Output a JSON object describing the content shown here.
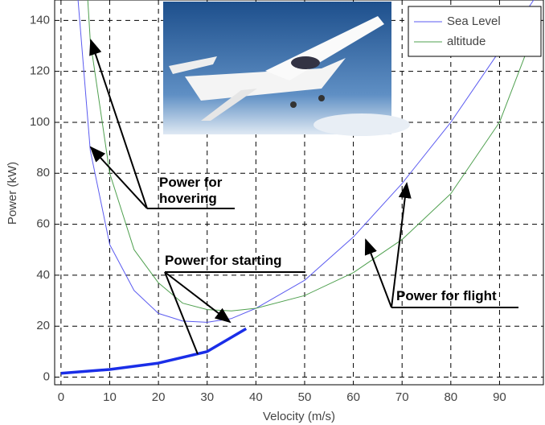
{
  "chart_data": {
    "type": "line",
    "xlabel": "Velocity (m/s)",
    "ylabel": "Power (kW)",
    "xlim": [
      -1.3,
      99
    ],
    "ylim": [
      -3,
      148
    ],
    "xticks": [
      0,
      10,
      20,
      30,
      40,
      50,
      60,
      70,
      80,
      90
    ],
    "yticks": [
      0,
      20,
      40,
      60,
      80,
      100,
      120,
      140
    ],
    "grid": true,
    "legend": "upper right",
    "series": [
      {
        "name": "Sea Level",
        "color": "#5b5bf0",
        "width": 1,
        "x": [
          3.5,
          6,
          10,
          15,
          20,
          25,
          30,
          35,
          40,
          50,
          60,
          70,
          80,
          90,
          97
        ],
        "values": [
          148,
          89,
          52,
          34,
          25,
          22,
          21.5,
          23,
          27,
          38,
          55,
          76,
          100,
          128,
          148
        ]
      },
      {
        "name": "altitude",
        "color": "#4fa04f",
        "width": 1,
        "x": [
          5.5,
          6,
          10,
          15,
          20,
          25,
          30,
          35,
          40,
          50,
          60,
          70,
          80,
          90,
          97
        ],
        "values": [
          148,
          132,
          80,
          50,
          37,
          29,
          26.5,
          26,
          27,
          32,
          41,
          54,
          72,
          100,
          135
        ]
      },
      {
        "color": "#1a2ee8",
        "width": 3.5,
        "x": [
          0,
          10,
          20,
          30,
          38
        ],
        "values": [
          1.5,
          3,
          5.5,
          10,
          19
        ]
      }
    ],
    "annotations": [
      {
        "lines": [
          "Power for",
          "hovering"
        ]
      },
      {
        "lines": [
          "Power for starting"
        ]
      },
      {
        "lines": [
          "Power for flight"
        ]
      }
    ]
  }
}
